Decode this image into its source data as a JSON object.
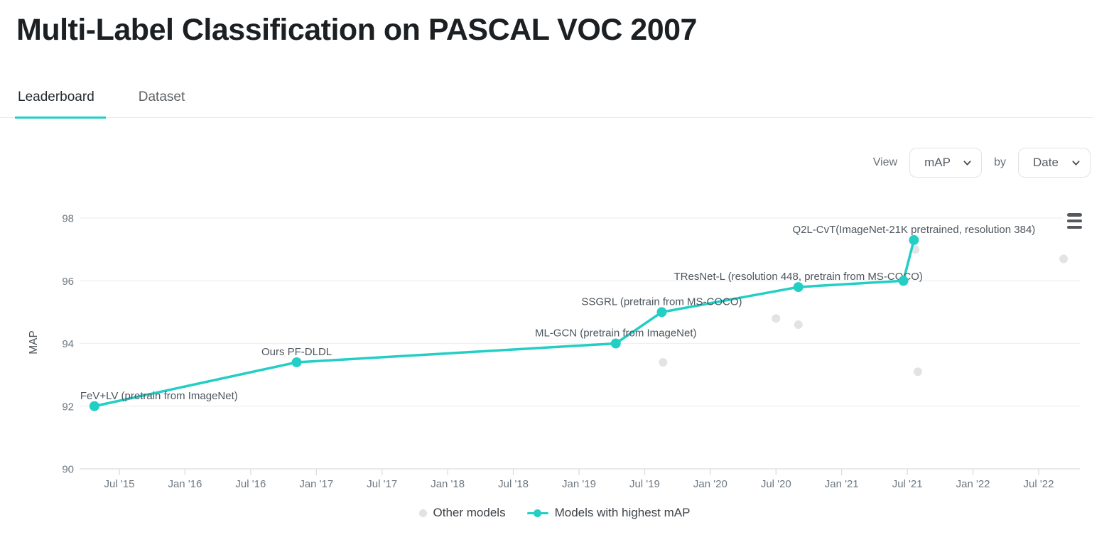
{
  "page": {
    "title": "Multi-Label Classification on PASCAL VOC 2007"
  },
  "tabs": [
    {
      "label": "Leaderboard",
      "active": true
    },
    {
      "label": "Dataset",
      "active": false
    }
  ],
  "controls": {
    "view_label": "View",
    "metric_value": "mAP",
    "by_label": "by",
    "group_value": "Date"
  },
  "colors": {
    "accent_teal": "#23cec5",
    "other_model_gray": "#e2e2e2",
    "grid_line": "#efefef",
    "axis_line": "#e2e4e7",
    "tick_text": "#6e7880",
    "point_label_text": "#4d565e"
  },
  "chart_data": {
    "type": "line",
    "title": "",
    "xlabel": "",
    "ylabel": "MAP",
    "ylim": [
      90,
      98
    ],
    "y_ticks": [
      90,
      92,
      94,
      96,
      98
    ],
    "grid": "horizontal",
    "legend_position": "bottom",
    "x_ticks": [
      {
        "label": "Jul '15",
        "year": 2015.5
      },
      {
        "label": "Jan '16",
        "year": 2016.0
      },
      {
        "label": "Jul '16",
        "year": 2016.5
      },
      {
        "label": "Jan '17",
        "year": 2017.0
      },
      {
        "label": "Jul '17",
        "year": 2017.5
      },
      {
        "label": "Jan '18",
        "year": 2018.0
      },
      {
        "label": "Jul '18",
        "year": 2018.5
      },
      {
        "label": "Jan '19",
        "year": 2019.0
      },
      {
        "label": "Jul '19",
        "year": 2019.5
      },
      {
        "label": "Jan '20",
        "year": 2020.0
      },
      {
        "label": "Jul '20",
        "year": 2020.5
      },
      {
        "label": "Jan '21",
        "year": 2021.0
      },
      {
        "label": "Jul '21",
        "year": 2021.5
      },
      {
        "label": "Jan '22",
        "year": 2022.0
      },
      {
        "label": "Jul '22",
        "year": 2022.5
      }
    ],
    "series": [
      {
        "name": "Models with highest mAP",
        "style": "line-with-points",
        "color": "#23cec5",
        "points": [
          {
            "x": 2015.31,
            "y": 92.0,
            "label": "FeV+LV (pretrain from ImageNet)",
            "label_anchor": "start"
          },
          {
            "x": 2016.85,
            "y": 93.4,
            "label": "Ours PF-DLDL"
          },
          {
            "x": 2019.28,
            "y": 94.0,
            "label": "ML-GCN (pretrain from ImageNet)"
          },
          {
            "x": 2019.63,
            "y": 95.0,
            "label": "SSGRL (pretrain from MS-COCO)"
          },
          {
            "x": 2020.67,
            "y": 95.8,
            "label": "TResNet-L (resolution 448, pretrain from MS-COCO)"
          },
          {
            "x": 2021.47,
            "y": 96.0,
            "label": ""
          },
          {
            "x": 2021.55,
            "y": 97.3,
            "label": "Q2L-CvT(ImageNet-21K pretrained, resolution 384)"
          }
        ]
      },
      {
        "name": "Other models",
        "style": "points",
        "color": "#e2e2e2",
        "points": [
          {
            "x": 2019.64,
            "y": 93.4
          },
          {
            "x": 2020.5,
            "y": 94.8
          },
          {
            "x": 2020.67,
            "y": 94.6
          },
          {
            "x": 2021.56,
            "y": 97.0
          },
          {
            "x": 2021.58,
            "y": 93.1
          },
          {
            "x": 2022.69,
            "y": 96.7
          }
        ]
      }
    ],
    "legend": [
      {
        "label": "Other models",
        "marker": "dot"
      },
      {
        "label": "Models with highest mAP",
        "marker": "line-dot"
      }
    ]
  }
}
